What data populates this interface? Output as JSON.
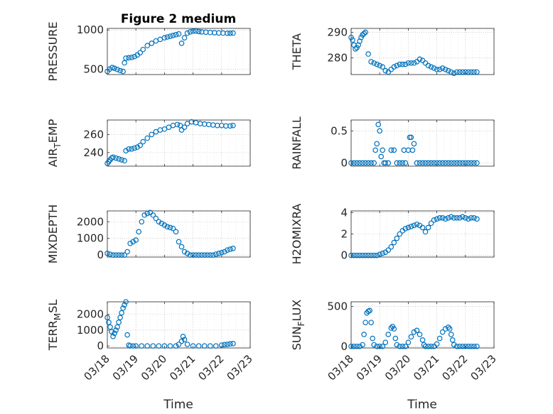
{
  "figure": {
    "title": "Figure 2 medium",
    "marker_color": "#0072BD"
  },
  "chart_data": [
    {
      "type": "scatter",
      "panel": "pressure",
      "ylabel_main": "PRESSURE",
      "ylabel_sub": "",
      "ylabel_tail": "",
      "yticks": [
        500,
        1000
      ],
      "ylim": [
        430,
        1020
      ],
      "xlim": [
        0,
        5
      ],
      "x": [
        0.0,
        0.08,
        0.17,
        0.25,
        0.35,
        0.45,
        0.55,
        0.6,
        0.65,
        0.75,
        0.85,
        0.95,
        1.05,
        1.15,
        1.25,
        1.4,
        1.55,
        1.7,
        1.85,
        2.0,
        2.1,
        2.2,
        2.3,
        2.4,
        2.5,
        2.6,
        2.7,
        2.8,
        2.9,
        3.0,
        3.1,
        3.2,
        3.3,
        3.45,
        3.6,
        3.75,
        3.9,
        4.05,
        4.2,
        4.3,
        4.4
      ],
      "y": [
        470,
        500,
        520,
        510,
        495,
        480,
        470,
        580,
        640,
        645,
        650,
        660,
        680,
        710,
        750,
        800,
        830,
        860,
        880,
        900,
        910,
        920,
        930,
        940,
        950,
        830,
        900,
        960,
        975,
        985,
        985,
        980,
        975,
        972,
        968,
        965,
        962,
        960,
        958,
        958,
        960
      ]
    },
    {
      "type": "scatter",
      "panel": "theta",
      "ylabel_main": "THETA",
      "ylabel_sub": "",
      "ylabel_tail": "",
      "yticks": [
        280,
        290
      ],
      "ylim": [
        273.5,
        291.5
      ],
      "xlim": [
        0,
        5
      ],
      "x": [
        0.0,
        0.05,
        0.1,
        0.15,
        0.2,
        0.25,
        0.3,
        0.35,
        0.4,
        0.45,
        0.5,
        0.6,
        0.7,
        0.8,
        0.9,
        1.0,
        1.1,
        1.2,
        1.3,
        1.4,
        1.5,
        1.6,
        1.7,
        1.8,
        1.9,
        2.0,
        2.1,
        2.2,
        2.3,
        2.4,
        2.5,
        2.6,
        2.7,
        2.8,
        2.9,
        3.0,
        3.1,
        3.2,
        3.3,
        3.4,
        3.5,
        3.6,
        3.7,
        3.8,
        3.9,
        4.0,
        4.1,
        4.2,
        4.3,
        4.4
      ],
      "y": [
        288,
        287,
        285,
        283.5,
        284,
        285,
        286.5,
        288,
        289,
        289.5,
        290,
        281.5,
        278.5,
        278,
        277.5,
        277,
        276.5,
        275,
        274.5,
        275.5,
        276.5,
        277,
        277.5,
        277.5,
        277.5,
        278,
        278,
        278,
        278.5,
        279.5,
        279,
        278,
        277,
        276.5,
        276,
        275.5,
        275.5,
        276,
        275.5,
        275,
        274.5,
        274,
        274.5,
        274.5,
        274.5,
        274.5,
        274.5,
        274.5,
        274.5,
        274.5
      ]
    },
    {
      "type": "scatter",
      "panel": "air_temp",
      "ylabel_main": "AIR",
      "ylabel_sub": "T",
      "ylabel_tail": "EMP",
      "yticks": [
        240,
        260
      ],
      "ylim": [
        225,
        276
      ],
      "xlim": [
        0,
        5
      ],
      "x": [
        0.0,
        0.05,
        0.1,
        0.15,
        0.2,
        0.3,
        0.4,
        0.5,
        0.6,
        0.65,
        0.75,
        0.85,
        0.95,
        1.05,
        1.15,
        1.25,
        1.4,
        1.55,
        1.7,
        1.85,
        2.0,
        2.15,
        2.3,
        2.45,
        2.55,
        2.6,
        2.7,
        2.8,
        2.95,
        3.1,
        3.25,
        3.4,
        3.55,
        3.7,
        3.85,
        4.0,
        4.15,
        4.3,
        4.4
      ],
      "y": [
        228,
        230,
        232,
        234,
        235,
        234,
        233,
        232,
        231,
        242,
        244,
        244,
        245,
        246,
        248,
        252,
        256,
        260,
        263,
        265,
        266,
        268,
        270,
        271,
        270,
        265,
        268,
        272,
        274,
        273,
        272,
        271.5,
        271,
        270.5,
        270,
        270,
        269.5,
        269.5,
        270
      ]
    },
    {
      "type": "scatter",
      "panel": "rainfall",
      "ylabel_main": "RAINFALL",
      "ylabel_sub": "",
      "ylabel_tail": "",
      "yticks": [
        0,
        0.5
      ],
      "ylim": [
        -0.05,
        0.67
      ],
      "xlim": [
        0,
        5
      ],
      "x": [
        0.0,
        0.1,
        0.2,
        0.3,
        0.4,
        0.5,
        0.6,
        0.7,
        0.8,
        0.85,
        0.9,
        0.95,
        1.0,
        1.05,
        1.1,
        1.15,
        1.2,
        1.3,
        1.4,
        1.5,
        1.6,
        1.7,
        1.8,
        1.85,
        1.9,
        2.0,
        2.05,
        2.1,
        2.15,
        2.2,
        2.3,
        2.4,
        2.5,
        2.6,
        2.7,
        2.8,
        2.9,
        3.0,
        3.1,
        3.2,
        3.3,
        3.4,
        3.5,
        3.6,
        3.7,
        3.8,
        3.9,
        4.0,
        4.1,
        4.2,
        4.3,
        4.4
      ],
      "y": [
        0,
        0,
        0,
        0,
        0,
        0,
        0,
        0,
        0,
        0.2,
        0.3,
        0.6,
        0.5,
        0.1,
        0.2,
        0,
        0,
        0,
        0.2,
        0.2,
        0,
        0,
        0,
        0.2,
        0,
        0.2,
        0.4,
        0.4,
        0.2,
        0.3,
        0,
        0,
        0,
        0,
        0,
        0,
        0,
        0,
        0,
        0,
        0,
        0,
        0,
        0,
        0,
        0,
        0,
        0,
        0,
        0,
        0,
        0
      ]
    },
    {
      "type": "scatter",
      "panel": "mixdepth",
      "ylabel_main": "MIXDEPTH",
      "ylabel_sub": "",
      "ylabel_tail": "",
      "yticks": [
        0,
        1000,
        2000
      ],
      "ylim": [
        -120,
        2650
      ],
      "xlim": [
        0,
        5
      ],
      "x": [
        0.0,
        0.1,
        0.2,
        0.3,
        0.4,
        0.5,
        0.6,
        0.7,
        0.8,
        0.9,
        1.0,
        1.1,
        1.2,
        1.3,
        1.4,
        1.5,
        1.6,
        1.7,
        1.8,
        1.9,
        2.0,
        2.1,
        2.2,
        2.3,
        2.4,
        2.5,
        2.6,
        2.7,
        2.8,
        2.9,
        3.0,
        3.1,
        3.2,
        3.3,
        3.4,
        3.5,
        3.6,
        3.7,
        3.8,
        3.9,
        4.0,
        4.1,
        4.2,
        4.3,
        4.4
      ],
      "y": [
        100,
        50,
        0,
        0,
        0,
        0,
        0,
        200,
        700,
        800,
        900,
        1400,
        2000,
        2400,
        2500,
        2550,
        2400,
        2200,
        2000,
        1900,
        1800,
        1700,
        1650,
        1600,
        1400,
        800,
        500,
        200,
        100,
        0,
        0,
        0,
        0,
        0,
        0,
        0,
        0,
        0,
        50,
        100,
        150,
        200,
        300,
        350,
        400
      ]
    },
    {
      "type": "scatter",
      "panel": "h2omixra",
      "ylabel_main": "H2OMIXRA",
      "ylabel_sub": "",
      "ylabel_tail": "",
      "yticks": [
        0,
        2,
        4
      ],
      "ylim": [
        -0.15,
        4.15
      ],
      "xlim": [
        0,
        5
      ],
      "x": [
        0.0,
        0.1,
        0.2,
        0.3,
        0.4,
        0.5,
        0.6,
        0.7,
        0.8,
        0.9,
        1.0,
        1.1,
        1.2,
        1.3,
        1.4,
        1.5,
        1.6,
        1.7,
        1.8,
        1.9,
        2.0,
        2.1,
        2.2,
        2.3,
        2.4,
        2.5,
        2.6,
        2.7,
        2.8,
        2.9,
        3.0,
        3.1,
        3.2,
        3.3,
        3.4,
        3.5,
        3.6,
        3.7,
        3.8,
        3.9,
        4.0,
        4.1,
        4.2,
        4.3,
        4.4
      ],
      "y": [
        0,
        0,
        0,
        0,
        0,
        0,
        0,
        0,
        0,
        0,
        0.1,
        0.2,
        0.3,
        0.5,
        0.8,
        1.2,
        1.6,
        2.0,
        2.3,
        2.5,
        2.6,
        2.7,
        2.8,
        2.9,
        2.8,
        2.6,
        2.2,
        2.6,
        3.0,
        3.3,
        3.4,
        3.5,
        3.5,
        3.4,
        3.5,
        3.6,
        3.5,
        3.5,
        3.5,
        3.6,
        3.5,
        3.4,
        3.5,
        3.5,
        3.4
      ]
    },
    {
      "type": "scatter",
      "panel": "terrain",
      "ylabel_main": "TERR",
      "ylabel_sub": "M",
      "ylabel_tail": "SL",
      "yticks": [
        0,
        1000,
        2000
      ],
      "ylim": [
        -130,
        2800
      ],
      "xlim": [
        0,
        5
      ],
      "x": [
        0.0,
        0.05,
        0.1,
        0.15,
        0.2,
        0.25,
        0.3,
        0.35,
        0.4,
        0.45,
        0.5,
        0.55,
        0.6,
        0.65,
        0.7,
        0.75,
        0.8,
        0.9,
        1.0,
        1.2,
        1.4,
        1.6,
        1.8,
        2.0,
        2.2,
        2.4,
        2.5,
        2.6,
        2.65,
        2.7,
        2.8,
        3.0,
        3.2,
        3.4,
        3.6,
        3.8,
        4.0,
        4.1,
        4.2,
        4.3,
        4.4
      ],
      "y": [
        1800,
        1500,
        1200,
        900,
        600,
        800,
        1000,
        1200,
        1500,
        1800,
        2100,
        2400,
        2600,
        2800,
        700,
        50,
        0,
        0,
        0,
        0,
        0,
        0,
        0,
        0,
        0,
        0,
        100,
        300,
        600,
        400,
        100,
        0,
        0,
        0,
        0,
        0,
        50,
        80,
        100,
        130,
        150
      ]
    },
    {
      "type": "scatter",
      "panel": "sun_flux",
      "ylabel_main": "SUN",
      "ylabel_sub": "F",
      "ylabel_tail": "LUX",
      "yticks": [
        0,
        500
      ],
      "ylim": [
        -20,
        560
      ],
      "xlim": [
        0,
        5
      ],
      "x": [
        0.0,
        0.1,
        0.2,
        0.3,
        0.4,
        0.45,
        0.5,
        0.55,
        0.6,
        0.65,
        0.7,
        0.75,
        0.8,
        0.9,
        1.0,
        1.1,
        1.2,
        1.3,
        1.4,
        1.45,
        1.5,
        1.55,
        1.6,
        1.7,
        1.8,
        1.9,
        2.0,
        2.1,
        2.2,
        2.3,
        2.4,
        2.5,
        2.55,
        2.6,
        2.7,
        2.8,
        2.9,
        3.0,
        3.1,
        3.2,
        3.3,
        3.4,
        3.45,
        3.5,
        3.55,
        3.6,
        3.7,
        3.8,
        3.9,
        4.0,
        4.1,
        4.2,
        4.3,
        4.4
      ],
      "y": [
        0,
        0,
        0,
        0,
        20,
        150,
        300,
        420,
        440,
        450,
        300,
        100,
        20,
        0,
        0,
        0,
        50,
        150,
        230,
        250,
        220,
        100,
        20,
        0,
        0,
        0,
        50,
        120,
        180,
        200,
        150,
        80,
        20,
        0,
        0,
        0,
        0,
        30,
        100,
        180,
        220,
        240,
        220,
        150,
        80,
        20,
        0,
        0,
        0,
        0,
        0,
        0,
        0,
        0
      ]
    }
  ],
  "shared_axes": {
    "xticklabels": [
      "03/18",
      "03/19",
      "03/20",
      "03/21",
      "03/22",
      "03/23"
    ],
    "xticks": [
      0,
      1,
      2,
      3,
      4,
      5
    ],
    "xlabel": "Time"
  }
}
